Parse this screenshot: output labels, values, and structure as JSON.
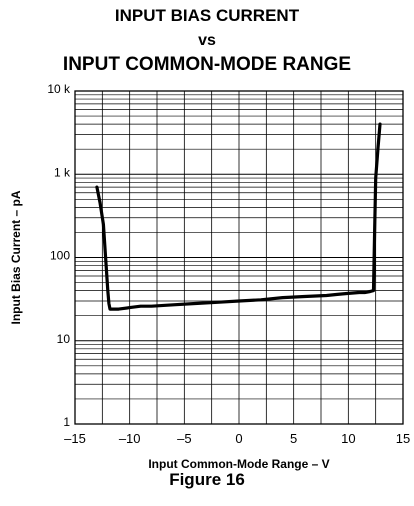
{
  "title_lines": [
    "INPUT BIAS CURRENT",
    "vs",
    "INPUT COMMON-MODE RANGE"
  ],
  "figure_caption": "Figure 16",
  "chart_data": {
    "type": "line",
    "title": "INPUT BIAS CURRENT vs INPUT COMMON-MODE RANGE",
    "xlabel": "Input Common-Mode Range – V",
    "ylabel": "Input Bias Current – pA",
    "xlim": [
      -15,
      15
    ],
    "ylim": [
      1,
      10000
    ],
    "y_scale": "log",
    "grid": true,
    "x_ticks": [
      -15,
      -10,
      -5,
      0,
      5,
      10,
      15
    ],
    "x_tick_labels": [
      "–15",
      "–10",
      "–5",
      "0",
      "5",
      "10",
      "15"
    ],
    "y_ticks": [
      1,
      10,
      100,
      1000,
      10000
    ],
    "y_tick_labels": [
      "1",
      "10",
      "100",
      "1 k",
      "10 k"
    ],
    "line_color": "#000000",
    "series": [
      {
        "x": [
          -13.0,
          -12.7,
          -12.4,
          -12.2,
          -12.0,
          -11.9,
          -11.8,
          -11.5,
          -11.0,
          -10.0,
          -9.0,
          -8.0,
          -6.0,
          -4.0,
          -2.0,
          0.0,
          2.0,
          4.0,
          6.0,
          8.0,
          9.0,
          10.0,
          11.0,
          11.5,
          12.0,
          12.3,
          12.4,
          12.5,
          12.7,
          12.9
        ],
        "y": [
          700,
          450,
          250,
          100,
          40,
          28,
          24,
          24,
          24,
          25,
          26,
          26,
          27,
          28,
          29,
          30,
          31,
          33,
          34,
          35,
          36,
          37,
          38,
          38,
          39,
          40,
          200,
          900,
          2000,
          4000
        ]
      }
    ]
  }
}
